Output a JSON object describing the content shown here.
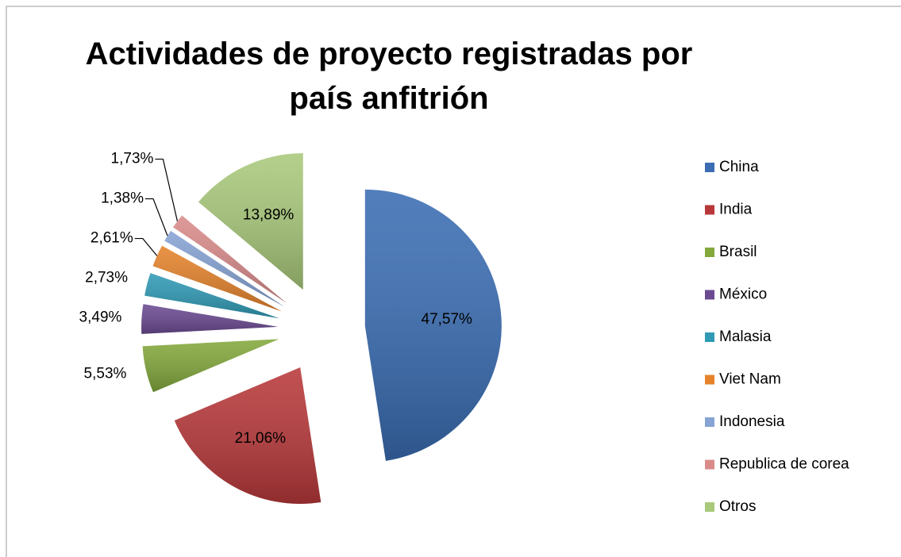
{
  "chart_data": {
    "type": "pie",
    "title": "Actividades de proyecto registradas por país anfitrión",
    "categories": [
      "China",
      "India",
      "Brasil",
      "México",
      "Malasia",
      "Viet Nam",
      "Indonesia",
      "Republica de corea",
      "Otros"
    ],
    "values": [
      47.57,
      21.06,
      5.53,
      3.49,
      2.73,
      2.61,
      1.38,
      1.73,
      13.89
    ],
    "value_labels": [
      "47,57%",
      "21,06%",
      "5,53%",
      "3,49%",
      "2,73%",
      "2,61%",
      "1,38%",
      "1,73%",
      "13,89%"
    ],
    "colors": [
      "#3a6db3",
      "#b8383a",
      "#83a83c",
      "#6b4a92",
      "#2f9ab5",
      "#e5832b",
      "#86a3d4",
      "#d98b8a",
      "#a9c97b"
    ],
    "legend": "right"
  }
}
